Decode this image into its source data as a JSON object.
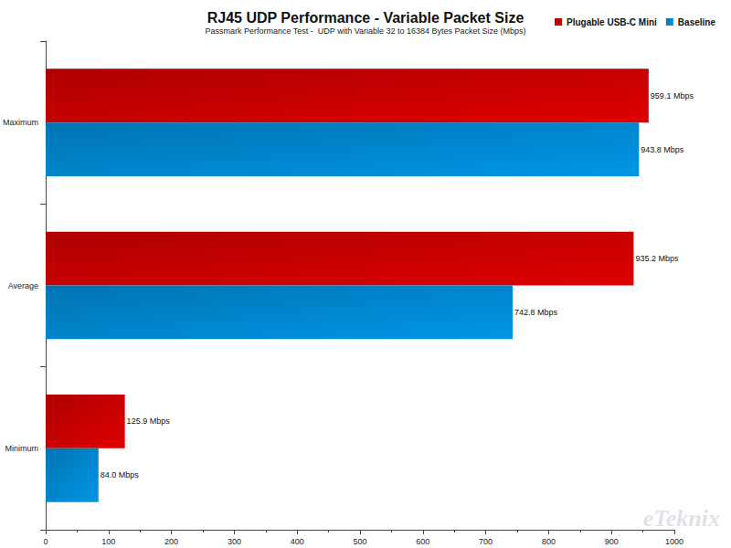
{
  "chart_data": {
    "type": "bar",
    "orientation": "horizontal",
    "title": "RJ45 UDP Performance - Variable Packet Size",
    "subtitle": "Passmark Performance Test -  UDP with Variable 32 to 16384 Bytes Packet Size (Mbps)",
    "annotations": [
      "eTeknix"
    ],
    "categories": [
      "Maximum",
      "Average",
      "Minimum"
    ],
    "series": [
      {
        "name": "Plugable USB-C Mini",
        "color": "#cc0000",
        "values": [
          959.1,
          935.2,
          125.9
        ],
        "value_labels": [
          "959.1 Mbps",
          "935.2 Mbps",
          "125.9 Mbps"
        ]
      },
      {
        "name": "Baseline",
        "color": "#0088d1",
        "values": [
          943.8,
          742.8,
          84.0
        ],
        "value_labels": [
          "943.8 Mbps",
          "742.8 Mbps",
          "84.0 Mbps"
        ]
      }
    ],
    "xlim": [
      0,
      1000
    ],
    "xticks": [
      0,
      100,
      200,
      300,
      400,
      500,
      600,
      700,
      800,
      900,
      1000
    ],
    "grid": false,
    "legend": "top-right",
    "data_labels": true
  }
}
